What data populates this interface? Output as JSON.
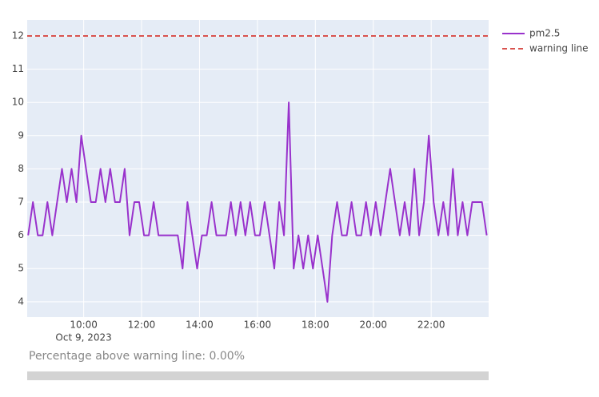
{
  "chart_data": {
    "type": "line",
    "x": [
      "2023-10-09 08:05",
      "2023-10-09 08:15",
      "2023-10-09 08:25",
      "2023-10-09 08:35",
      "2023-10-09 08:45",
      "2023-10-09 08:55",
      "2023-10-09 09:05",
      "2023-10-09 09:15",
      "2023-10-09 09:25",
      "2023-10-09 09:35",
      "2023-10-09 09:45",
      "2023-10-09 09:55",
      "2023-10-09 10:05",
      "2023-10-09 10:15",
      "2023-10-09 10:25",
      "2023-10-09 10:35",
      "2023-10-09 10:45",
      "2023-10-09 10:55",
      "2023-10-09 11:05",
      "2023-10-09 11:15",
      "2023-10-09 11:25",
      "2023-10-09 11:35",
      "2023-10-09 11:45",
      "2023-10-09 11:55",
      "2023-10-09 12:05",
      "2023-10-09 12:15",
      "2023-10-09 12:25",
      "2023-10-09 12:35",
      "2023-10-09 12:45",
      "2023-10-09 12:55",
      "2023-10-09 13:05",
      "2023-10-09 13:15",
      "2023-10-09 13:25",
      "2023-10-09 13:35",
      "2023-10-09 13:45",
      "2023-10-09 13:55",
      "2023-10-09 14:05",
      "2023-10-09 14:15",
      "2023-10-09 14:25",
      "2023-10-09 14:35",
      "2023-10-09 14:45",
      "2023-10-09 14:55",
      "2023-10-09 15:05",
      "2023-10-09 15:15",
      "2023-10-09 15:25",
      "2023-10-09 15:35",
      "2023-10-09 15:45",
      "2023-10-09 15:55",
      "2023-10-09 16:05",
      "2023-10-09 16:15",
      "2023-10-09 16:25",
      "2023-10-09 16:35",
      "2023-10-09 16:45",
      "2023-10-09 16:55",
      "2023-10-09 17:05",
      "2023-10-09 17:15",
      "2023-10-09 17:25",
      "2023-10-09 17:35",
      "2023-10-09 17:45",
      "2023-10-09 17:55",
      "2023-10-09 18:05",
      "2023-10-09 18:15",
      "2023-10-09 18:25",
      "2023-10-09 18:35",
      "2023-10-09 18:45",
      "2023-10-09 18:55",
      "2023-10-09 19:05",
      "2023-10-09 19:15",
      "2023-10-09 19:25",
      "2023-10-09 19:35",
      "2023-10-09 19:45",
      "2023-10-09 19:55",
      "2023-10-09 20:05",
      "2023-10-09 20:15",
      "2023-10-09 20:25",
      "2023-10-09 20:35",
      "2023-10-09 20:45",
      "2023-10-09 20:55",
      "2023-10-09 21:05",
      "2023-10-09 21:15",
      "2023-10-09 21:25",
      "2023-10-09 21:35",
      "2023-10-09 21:45",
      "2023-10-09 21:55",
      "2023-10-09 22:05",
      "2023-10-09 22:15",
      "2023-10-09 22:25",
      "2023-10-09 22:35",
      "2023-10-09 22:45",
      "2023-10-09 22:55",
      "2023-10-09 23:05",
      "2023-10-09 23:15",
      "2023-10-09 23:25",
      "2023-10-09 23:35",
      "2023-10-09 23:45",
      "2023-10-09 23:55"
    ],
    "series": [
      {
        "name": "pm2.5",
        "color": "#9932cc",
        "values": [
          6,
          7,
          6,
          6,
          7,
          6,
          7,
          8,
          7,
          8,
          7,
          9,
          8,
          7,
          7,
          8,
          7,
          8,
          7,
          7,
          8,
          6,
          7,
          7,
          6,
          6,
          7,
          6,
          6,
          6,
          6,
          6,
          5,
          7,
          6,
          5,
          6,
          6,
          7,
          6,
          6,
          6,
          7,
          6,
          7,
          6,
          7,
          6,
          6,
          7,
          6,
          5,
          7,
          6,
          10,
          5,
          6,
          5,
          6,
          5,
          6,
          5,
          4,
          6,
          7,
          6,
          6,
          7,
          6,
          6,
          7,
          6,
          7,
          6,
          7,
          8,
          7,
          6,
          7,
          6,
          8,
          6,
          7,
          9,
          7,
          6,
          7,
          6,
          8,
          6,
          7,
          6,
          7,
          7,
          7,
          6
        ]
      }
    ],
    "reference_lines": [
      {
        "name": "warning line",
        "value": 12,
        "color": "#d9534f",
        "dash": true
      }
    ],
    "xlim": [
      "2023-10-09 08:03",
      "2023-10-09 23:59"
    ],
    "xticks": [
      {
        "value": "2023-10-09 10:00",
        "label": "10:00"
      },
      {
        "value": "2023-10-09 12:00",
        "label": "12:00"
      },
      {
        "value": "2023-10-09 14:00",
        "label": "14:00"
      },
      {
        "value": "2023-10-09 16:00",
        "label": "16:00"
      },
      {
        "value": "2023-10-09 18:00",
        "label": "18:00"
      },
      {
        "value": "2023-10-09 20:00",
        "label": "20:00"
      },
      {
        "value": "2023-10-09 22:00",
        "label": "22:00"
      }
    ],
    "x_date_label": "Oct 9, 2023",
    "ylim": [
      3.54,
      12.48
    ],
    "yticks": [
      4,
      5,
      6,
      7,
      8,
      9,
      10,
      11,
      12
    ],
    "grid": true,
    "annotation": "Percentage above warning line: 0.00%"
  }
}
